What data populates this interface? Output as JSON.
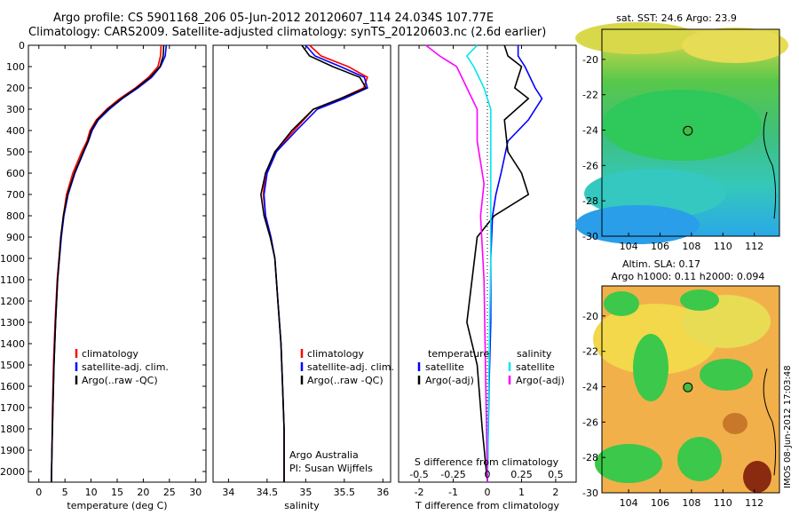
{
  "header": {
    "line1": "Argo profile: CS 5901168_206 05-Jun-2012 20120607_114 24.034S 107.77E",
    "line2": "Climatology: CARS2009. Satellite-adjusted climatology: synTS_20120603.nc (2.6d earlier)"
  },
  "stamp": "IMOS 08-Jun-2012 17:03:48",
  "colors": {
    "red": "#ff0000",
    "blue": "#0000ff",
    "black": "#000000",
    "cyan": "#00e5ee",
    "magenta": "#ff00ff"
  },
  "chart_data": [
    {
      "type": "line",
      "xlabel": "temperature (deg C)",
      "ylabel": "",
      "xlim": [
        -2,
        32
      ],
      "ylim": [
        0,
        2050
      ],
      "xticks": [
        0,
        5,
        10,
        15,
        20,
        25,
        30
      ],
      "yticks": [
        0,
        100,
        200,
        300,
        400,
        500,
        600,
        700,
        800,
        900,
        1000,
        1100,
        1200,
        1300,
        1400,
        1500,
        1600,
        1700,
        1800,
        1900,
        2000
      ],
      "legend": [
        "climatology",
        "satellite-adj. clim.",
        "Argo(..raw -QC)"
      ],
      "legend_position": "lower-center",
      "annotations": [],
      "series": [
        {
          "name": "climatology",
          "color": "#ff0000",
          "x": [
            23.4,
            23.3,
            22.8,
            21,
            18.5,
            15.5,
            13,
            11,
            9.8,
            9.2,
            8.2,
            6.5,
            5.3,
            4.7,
            4.2,
            3.5,
            3.1,
            2.8,
            2.6,
            2.5,
            2.4
          ],
          "y": [
            0,
            50,
            100,
            150,
            200,
            250,
            300,
            350,
            400,
            450,
            500,
            600,
            700,
            800,
            900,
            1100,
            1300,
            1500,
            1700,
            1900,
            2050
          ]
        },
        {
          "name": "satellite-adj. clim.",
          "color": "#0000ff",
          "x": [
            24.4,
            24.2,
            23.3,
            21.6,
            19,
            16,
            13.5,
            11.4,
            10.2,
            9.5,
            8.6,
            6.9,
            5.6,
            4.8,
            4.3,
            3.6,
            3.2,
            2.9,
            2.7,
            2.5,
            2.4
          ],
          "y": [
            0,
            50,
            100,
            150,
            200,
            250,
            300,
            350,
            400,
            450,
            500,
            600,
            700,
            800,
            900,
            1100,
            1300,
            1500,
            1700,
            1900,
            2050
          ]
        },
        {
          "name": "Argo(..raw -QC)",
          "color": "#000000",
          "x": [
            23.9,
            23.8,
            23.2,
            21.3,
            18.7,
            15.8,
            13.2,
            11.2,
            10,
            9.4,
            8.5,
            6.8,
            5.5,
            4.7,
            4.2,
            3.6,
            3.2,
            2.9,
            2.7,
            2.5,
            2.4
          ],
          "y": [
            0,
            50,
            100,
            150,
            200,
            250,
            300,
            350,
            400,
            450,
            500,
            600,
            700,
            800,
            900,
            1100,
            1300,
            1500,
            1700,
            1900,
            2050
          ]
        }
      ]
    },
    {
      "type": "line",
      "xlabel": "salinity",
      "ylabel": "",
      "xlim": [
        33.8,
        36.1
      ],
      "ylim": [
        0,
        2050
      ],
      "xticks": [
        34,
        34.5,
        35,
        35.5,
        36
      ],
      "legend": [
        "climatology",
        "satellite-adj. clim.",
        "Argo(..raw -QC)"
      ],
      "legend_position": "lower-right",
      "annotations": [
        "Argo Australia",
        "PI: Susan Wijffels"
      ],
      "series": [
        {
          "name": "climatology",
          "color": "#ff0000",
          "x": [
            35.05,
            35.2,
            35.55,
            35.8,
            35.75,
            35.45,
            35.1,
            34.85,
            34.6,
            34.48,
            34.45,
            34.48,
            34.55,
            34.6,
            34.64,
            34.68,
            34.7,
            34.72,
            34.72
          ],
          "y": [
            0,
            50,
            100,
            150,
            200,
            250,
            300,
            400,
            500,
            600,
            700,
            800,
            900,
            1000,
            1200,
            1400,
            1600,
            1800,
            2050
          ]
        },
        {
          "name": "satellite-adj. clim.",
          "color": "#0000ff",
          "x": [
            35.0,
            35.12,
            35.45,
            35.76,
            35.8,
            35.5,
            35.15,
            34.88,
            34.62,
            34.5,
            34.46,
            34.48,
            34.55,
            34.6,
            34.64,
            34.68,
            34.7,
            34.72,
            34.72
          ],
          "y": [
            0,
            50,
            100,
            150,
            200,
            250,
            300,
            400,
            500,
            600,
            700,
            800,
            900,
            1000,
            1200,
            1400,
            1600,
            1800,
            2050
          ]
        },
        {
          "name": "Argo(..raw -QC)",
          "color": "#000000",
          "x": [
            34.95,
            35.05,
            35.35,
            35.7,
            35.78,
            35.45,
            35.1,
            34.82,
            34.6,
            34.48,
            34.42,
            34.46,
            34.54,
            34.6,
            34.64,
            34.68,
            34.7,
            34.72,
            34.72
          ],
          "y": [
            0,
            50,
            100,
            150,
            200,
            250,
            300,
            400,
            500,
            600,
            700,
            800,
            900,
            1000,
            1200,
            1400,
            1600,
            1800,
            2050
          ]
        }
      ]
    },
    {
      "type": "line",
      "xlabel": "T difference from climatology",
      "xlabel_top": "S difference from climatology",
      "xlim": [
        -2.6,
        2.6
      ],
      "ylim": [
        0,
        2050
      ],
      "xticks": [
        -2,
        -1,
        0,
        1,
        2
      ],
      "xticks_S": [
        {
          "label": "-0.5",
          "x": -2
        },
        {
          "label": "-0.25",
          "x": -1
        },
        {
          "label": "0",
          "x": 0
        },
        {
          "label": "0.25",
          "x": 1
        },
        {
          "label": "0.5",
          "x": 2
        }
      ],
      "legend_titles": [
        "temperature",
        "salinity"
      ],
      "legend": [
        "satellite",
        "Argo(-adj)",
        "satellite",
        "Argo(-adj)"
      ],
      "legend_position": "lower-center",
      "series": [
        {
          "name": "satellite",
          "color": "#0000ff",
          "x": [
            0.9,
            0.9,
            1.1,
            1.4,
            1.6,
            1.2,
            0.6,
            0.4,
            0.25,
            0.15,
            0.1,
            0.1,
            0.05,
            0.0
          ],
          "y": [
            0,
            50,
            100,
            200,
            250,
            350,
            450,
            600,
            700,
            800,
            1000,
            1300,
            1600,
            2050
          ]
        },
        {
          "name": "Argo(-adj)",
          "color": "#000000",
          "x": [
            0.5,
            0.6,
            1.0,
            0.8,
            1.2,
            0.5,
            0.6,
            1.0,
            1.2,
            0.2,
            -0.3,
            -0.6,
            -0.3,
            -0.15,
            0.0
          ],
          "y": [
            0,
            50,
            100,
            200,
            250,
            350,
            500,
            600,
            700,
            800,
            900,
            1300,
            1500,
            1800,
            2050
          ]
        },
        {
          "name": "satellite",
          "color": "#00e5ee",
          "x": [
            -0.3,
            -0.6,
            -0.4,
            -0.1,
            0.1,
            0.1,
            0.1,
            0.1,
            0.05,
            0.0
          ],
          "y": [
            0,
            50,
            100,
            200,
            300,
            500,
            700,
            1000,
            1500,
            2050
          ]
        },
        {
          "name": "Argo(-adj)",
          "color": "#ff00ff",
          "x": [
            -1.8,
            -1.4,
            -0.9,
            -0.6,
            -0.3,
            -0.3,
            -0.1,
            -0.2,
            -0.1,
            0.0
          ],
          "y": [
            0,
            50,
            100,
            200,
            300,
            450,
            650,
            800,
            1100,
            2050
          ]
        }
      ]
    },
    {
      "type": "heatmap",
      "title": "sat. SST: 24.6  Argo: 23.9",
      "xlim": [
        102.3,
        113.6
      ],
      "ylim": [
        -30,
        -18.3
      ],
      "xticks": [
        104,
        106,
        108,
        110,
        112
      ],
      "yticks": [
        -30,
        -28,
        -26,
        -24,
        -22,
        -20
      ],
      "marker": {
        "x": 107.77,
        "y": -24.034
      }
    },
    {
      "type": "heatmap",
      "title": "Altim. SLA: 0.17",
      "subtitle": "Argo h1000: 0.11 h2000: 0.094",
      "xlim": [
        102.3,
        113.6
      ],
      "ylim": [
        -30,
        -18.3
      ],
      "xticks": [
        104,
        106,
        108,
        110,
        112
      ],
      "yticks": [
        -30,
        -28,
        -26,
        -24,
        -22,
        -20
      ],
      "marker": {
        "x": 107.77,
        "y": -24.034
      }
    }
  ]
}
